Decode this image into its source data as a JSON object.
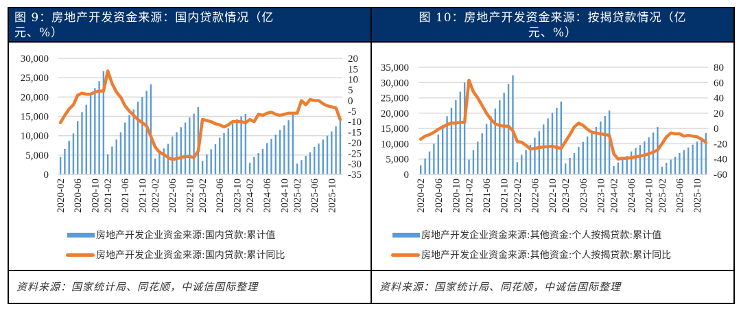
{
  "colors": {
    "title_bg": "#03326a",
    "bar": "#5b9bd5",
    "line": "#ed7d31",
    "grid": "#d9d9d9"
  },
  "panels": [
    {
      "title_line1": "图 9：房地产开发资金来源：国内贷款情况（亿",
      "title_line2": "元、%）",
      "legend_bar": "房地产开发企业资金来源:国内贷款:累计值",
      "legend_line": "房地产开发企业资金来源:国内贷款:累计同比",
      "source": "资料来源：国家统计局、同花顺，中诚信国际整理"
    },
    {
      "title_line1": "图 10：房地产开发资金来源：按揭贷款情况（亿",
      "title_line2": "元、%）",
      "legend_bar": "房地产开发企业资金来源:其他资金:个人按揭贷款:累计值",
      "legend_line": "房地产开发企业资金来源:其他资金:个人按揭贷款:累计同比",
      "source": "资料来源：国家统计局、同花顺，中诚信国际整理"
    }
  ],
  "chart_data": [
    {
      "type": "bar",
      "title": "图 9：房地产开发资金来源：国内贷款情况（亿元、%）",
      "x_tick_labels": [
        "2020-02",
        "2020-06",
        "2020-10",
        "2021-02",
        "2021-06",
        "2021-10",
        "2022-02",
        "2022-06",
        "2022-10",
        "2023-02",
        "2023-06",
        "2023-10",
        "2024-02",
        "2024-06",
        "2024-10",
        "2025-02",
        "2025-06",
        "2025-10"
      ],
      "y_ticks": [
        "0",
        "5,000",
        "10,000",
        "15,000",
        "20,000",
        "25,000",
        "30,000"
      ],
      "y2_ticks": [
        "-35",
        "-30",
        "-25",
        "-20",
        "-15",
        "-10",
        "-5",
        "0",
        "5",
        "10",
        "15",
        "20"
      ],
      "ylim": [
        0,
        30000
      ],
      "y2lim": [
        -35,
        20
      ],
      "grid": true,
      "legend_position": "bottom",
      "years": [
        {
          "year": "2020",
          "months": [
            "02",
            "03",
            "04",
            "05",
            "06",
            "07",
            "08",
            "09",
            "10",
            "11",
            "12"
          ]
        },
        {
          "year": "2021",
          "months": [
            "02",
            "03",
            "04",
            "05",
            "06",
            "07",
            "08",
            "09",
            "10",
            "11",
            "12"
          ]
        },
        {
          "year": "2022",
          "months": [
            "02",
            "03",
            "04",
            "05",
            "06",
            "07",
            "08",
            "09",
            "10",
            "11",
            "12"
          ]
        },
        {
          "year": "2023",
          "months": [
            "02",
            "03",
            "04",
            "05",
            "06",
            "07",
            "08",
            "09",
            "10",
            "11",
            "12"
          ]
        },
        {
          "year": "2024",
          "months": [
            "02",
            "03",
            "04",
            "05",
            "06",
            "07",
            "08",
            "09",
            "10",
            "11",
            "12"
          ]
        },
        {
          "year": "2025",
          "months": [
            "02",
            "03",
            "04",
            "05",
            "06",
            "07",
            "08",
            "09",
            "10",
            "11"
          ]
        }
      ],
      "series": [
        {
          "name": "房地产开发企业资金来源:国内贷款:累计值",
          "kind": "bar",
          "axis": "left",
          "values": [
            4500,
            6600,
            8700,
            10600,
            13800,
            16100,
            18000,
            20500,
            22300,
            24100,
            26700,
            5200,
            7200,
            9000,
            10900,
            13400,
            15400,
            16800,
            18800,
            20000,
            21600,
            23300,
            4100,
            5400,
            6700,
            7900,
            9800,
            10900,
            12200,
            13400,
            14700,
            15700,
            17400,
            3500,
            5200,
            6500,
            7800,
            9500,
            10700,
            11900,
            13100,
            14300,
            15000,
            15600,
            3000,
            4500,
            5500,
            6600,
            8100,
            9200,
            10300,
            11500,
            12700,
            14000,
            15400,
            2800,
            3700,
            4800,
            5700,
            7100,
            8000,
            9000,
            10000,
            11100,
            12400,
            13900
          ]
        },
        {
          "name": "房地产开发企业资金来源:国内贷款:累计同比",
          "kind": "line",
          "axis": "right",
          "values": [
            -10.5,
            -7,
            -4,
            -2,
            2.5,
            3.5,
            3,
            3,
            4,
            4.5,
            4.5,
            14,
            8,
            4,
            1.5,
            -2.5,
            -5,
            -7,
            -9,
            -10.5,
            -12,
            -17,
            -22,
            -24.5,
            -25.5,
            -27,
            -28,
            -27.5,
            -27,
            -26.5,
            -26.5,
            -27,
            -24,
            -9,
            -9.5,
            -10,
            -11,
            -11.5,
            -12.5,
            -11.5,
            -10,
            -10,
            -10,
            -10.5,
            -9,
            -10,
            -6.5,
            -7,
            -6,
            -5.5,
            -6.5,
            -7,
            -6.5,
            -6,
            -6,
            -6,
            0,
            -2,
            0.5,
            0,
            0,
            -1.5,
            -2.5,
            -3,
            -3.5,
            -9
          ]
        }
      ]
    },
    {
      "type": "bar",
      "title": "图 10：房地产开发资金来源：按揭贷款情况（亿元、%）",
      "x_tick_labels": [
        "2020-02",
        "2020-06",
        "2020-10",
        "2021-02",
        "2021-06",
        "2021-10",
        "2022-02",
        "2022-06",
        "2022-10",
        "2023-02",
        "2023-06",
        "2023-10",
        "2024-02",
        "2024-06",
        "2024-10",
        "2025-02",
        "2025-06",
        "2025-10"
      ],
      "y_ticks": [
        "0",
        "5,000",
        "10,000",
        "15,000",
        "20,000",
        "25,000",
        "30,000",
        "35,000"
      ],
      "y2_ticks": [
        "-60",
        "-40",
        "-20",
        "0",
        "20",
        "40",
        "60",
        "80"
      ],
      "ylim": [
        0,
        35000
      ],
      "y2lim": [
        -60,
        80
      ],
      "grid": true,
      "legend_position": "bottom",
      "series": [
        {
          "name": "房地产开发企业资金来源:其他资金:个人按揭贷款:累计值",
          "kind": "bar",
          "axis": "left",
          "values": [
            3000,
            5200,
            7500,
            10000,
            13000,
            16000,
            19000,
            21800,
            24300,
            27000,
            30000,
            4800,
            7900,
            10700,
            13400,
            16500,
            19000,
            21500,
            24200,
            26700,
            29600,
            32400,
            4000,
            6400,
            8000,
            9700,
            12000,
            14100,
            16300,
            18300,
            20100,
            21800,
            23800,
            3600,
            5400,
            7000,
            9000,
            10600,
            12400,
            14400,
            15500,
            17300,
            19100,
            20900,
            2700,
            3900,
            5000,
            6000,
            7500,
            8600,
            9600,
            10800,
            12100,
            13700,
            15500,
            2500,
            3800,
            4800,
            5700,
            7000,
            7900,
            8800,
            9700,
            10700,
            11800,
            13500
          ]
        },
        {
          "name": "房地产开发企业资金来源:其他资金:个人按揭贷款:累计同比",
          "kind": "line",
          "axis": "right",
          "values": [
            -14,
            -10,
            -8,
            -5,
            -1,
            2,
            5,
            7,
            7,
            8,
            8,
            63,
            48,
            40,
            30,
            20,
            12,
            6,
            4,
            3,
            3,
            -3,
            -17,
            -18,
            -22,
            -27,
            -26,
            -25,
            -24,
            -24,
            -23,
            -25,
            -26,
            -17,
            -8,
            2,
            7,
            4,
            -1,
            -5,
            -6,
            -7,
            -8,
            -9,
            -33,
            -40,
            -39,
            -39,
            -38,
            -37,
            -36,
            -35,
            -33,
            -31,
            -28,
            -20,
            -11,
            -6,
            -7,
            -7,
            -10,
            -9,
            -10,
            -11,
            -14,
            -18
          ]
        }
      ]
    }
  ]
}
